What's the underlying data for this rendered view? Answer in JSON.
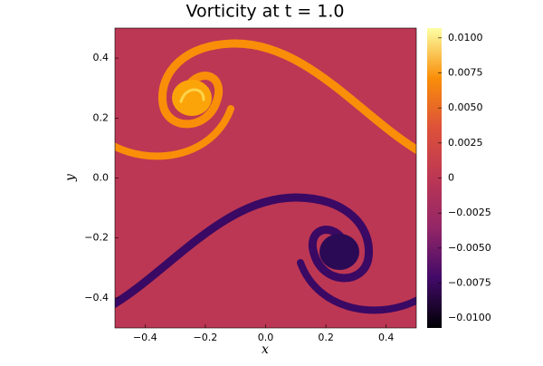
{
  "chart_data": {
    "type": "heatmap",
    "title": "Vorticity at t = 1.0",
    "x_label": "x",
    "y_label": "y",
    "xlim": [
      -0.5,
      0.5
    ],
    "ylim": [
      -0.5,
      0.5
    ],
    "xticks": [
      {
        "value": -0.4,
        "label": "−0.4"
      },
      {
        "value": -0.2,
        "label": "−0.2"
      },
      {
        "value": 0,
        "label": "0.0"
      },
      0.2,
      0.4
    ],
    "yticks": [
      {
        "value": -0.4,
        "label": "−0.4"
      },
      {
        "value": -0.2,
        "label": "−0.2"
      },
      {
        "value": 0,
        "label": "0.0"
      },
      0.2,
      0.4
    ],
    "colormap": [
      "#000004",
      "#420a68",
      "#932667",
      "#bc3754",
      "#dd513a",
      "#f98e09",
      "#fcffa4"
    ],
    "clim": [
      -0.0107,
      0.0107
    ],
    "cticks": [
      {
        "value": -0.01,
        "label": "−0.0100"
      },
      {
        "value": -0.0075,
        "label": "−0.0075"
      },
      {
        "value": -0.005,
        "label": "−0.0050"
      },
      {
        "value": -0.0025,
        "label": "−0.0025"
      },
      0,
      {
        "value": 0.0025,
        "label": "0.0025"
      },
      {
        "value": 0.005,
        "label": "0.0050"
      },
      {
        "value": 0.0075,
        "label": "0.0075"
      },
      {
        "value": 0.01,
        "label": "0.0100"
      }
    ]
  }
}
